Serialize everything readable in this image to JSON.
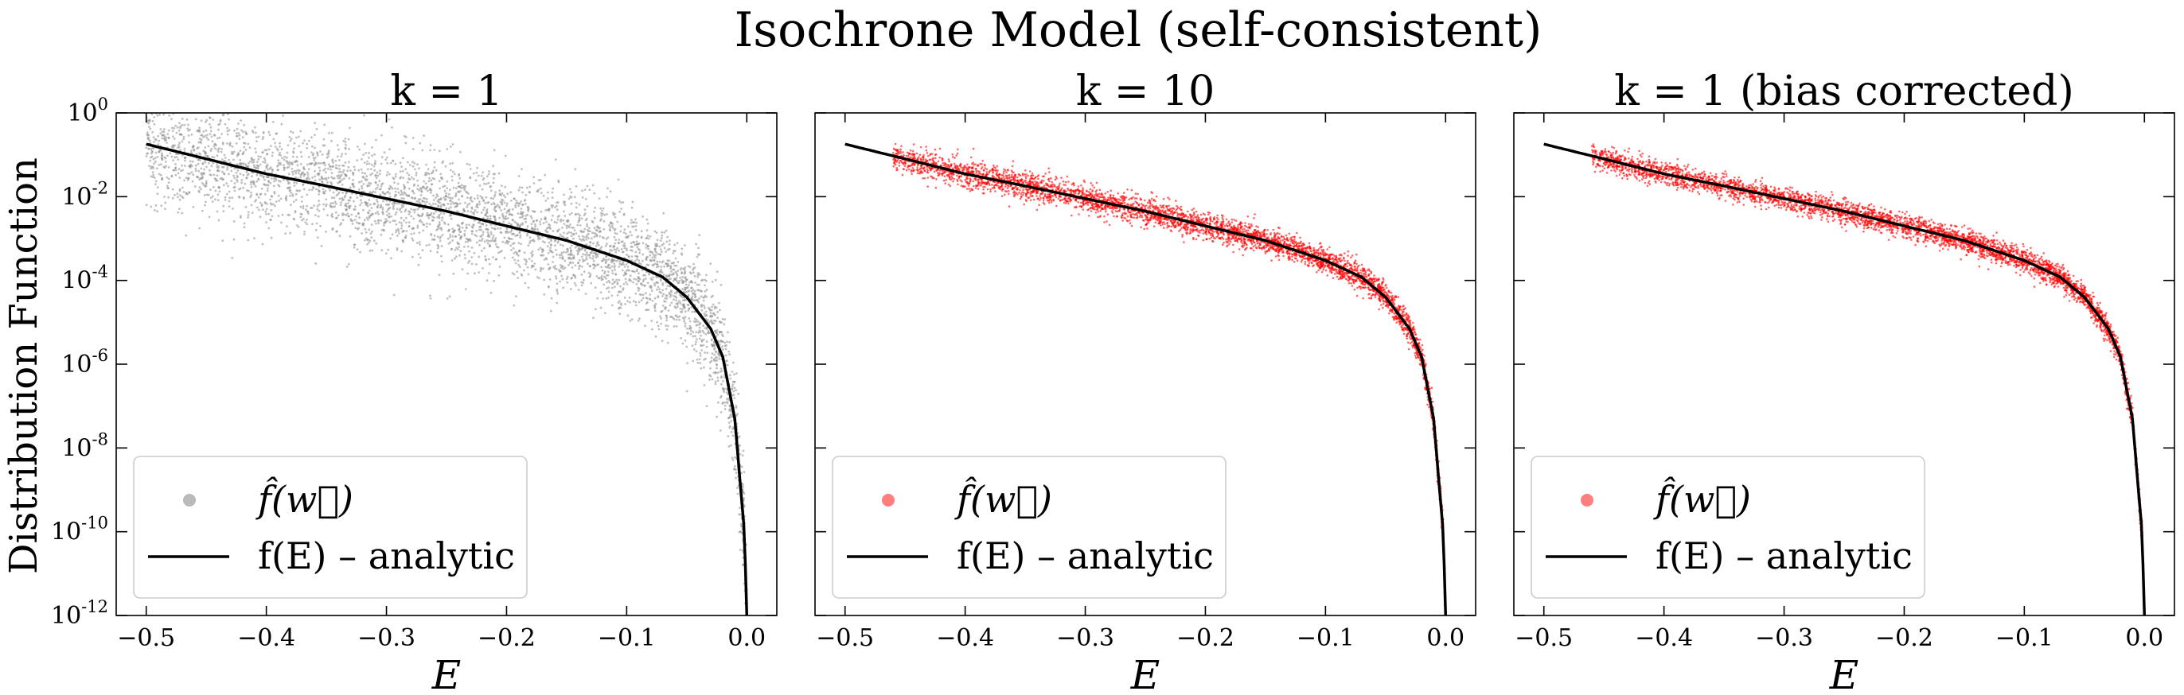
{
  "figure": {
    "title": "Isochrone Model (self-consistent)",
    "ylabel": "Distribution Function"
  },
  "chart_data": [
    {
      "type": "scatter",
      "title": "k = 1",
      "xlabel": "E",
      "ylabel": "Distribution Function",
      "xlim": [
        -0.525,
        0.025
      ],
      "ylim": [
        1e-12,
        1
      ],
      "yscale": "log",
      "xticks": [
        "−0.5",
        "−0.4",
        "−0.3",
        "−0.2",
        "−0.1",
        "0.0"
      ],
      "yticks": [
        "10^0",
        "10^-2",
        "10^-4",
        "10^-6",
        "10^-8",
        "10^-10",
        "10^-12"
      ],
      "legend": {
        "position": "lower-left",
        "entries": [
          "f̂(w⃗)",
          "f(E) – analytic"
        ]
      },
      "series": [
        {
          "name": "f̂(w⃗)",
          "kind": "scatter",
          "color": "#8c8c8c",
          "spread": 0.4,
          "points_described_by": "noisy samples around the analytic curve, E from -0.5 to 0.0"
        },
        {
          "name": "f(E) – analytic",
          "kind": "line",
          "color": "#000000",
          "x": [
            -0.5,
            -0.45,
            -0.4,
            -0.35,
            -0.3,
            -0.25,
            -0.2,
            -0.15,
            -0.1,
            -0.07,
            -0.05,
            -0.03,
            -0.02,
            -0.01,
            -0.005,
            -0.002,
            -0.001,
            0.0
          ],
          "y": [
            0.18,
            0.08,
            0.035,
            0.018,
            0.009,
            0.0045,
            0.002,
            0.0009,
            0.0003,
            0.00012,
            4e-05,
            7e-06,
            1.5e-06,
            5e-08,
            1e-09,
            1e-10,
            1e-11,
            1e-12
          ]
        }
      ]
    },
    {
      "type": "scatter",
      "title": "k = 10",
      "xlabel": "E",
      "ylabel": "",
      "xlim": [
        -0.525,
        0.025
      ],
      "ylim": [
        1e-12,
        1
      ],
      "yscale": "log",
      "xticks": [
        "−0.5",
        "−0.4",
        "−0.3",
        "−0.2",
        "−0.1",
        "0.0"
      ],
      "legend": {
        "position": "lower-left",
        "entries": [
          "f̂(w⃗)",
          "f(E) – analytic"
        ]
      },
      "series": [
        {
          "name": "f̂(w⃗)",
          "kind": "scatter",
          "color": "#ff0000",
          "spread": 0.16,
          "points_described_by": "noisy samples around the analytic curve, E from -0.46 to 0.0"
        },
        {
          "name": "f(E) – analytic",
          "kind": "line",
          "color": "#000000",
          "x": [
            -0.5,
            -0.45,
            -0.4,
            -0.35,
            -0.3,
            -0.25,
            -0.2,
            -0.15,
            -0.1,
            -0.07,
            -0.05,
            -0.03,
            -0.02,
            -0.01,
            -0.005,
            -0.002,
            -0.001,
            0.0
          ],
          "y": [
            0.18,
            0.08,
            0.035,
            0.018,
            0.009,
            0.0045,
            0.002,
            0.0009,
            0.0003,
            0.00012,
            4e-05,
            7e-06,
            1.5e-06,
            5e-08,
            1e-09,
            1e-10,
            1e-11,
            1e-12
          ]
        }
      ]
    },
    {
      "type": "scatter",
      "title": "k = 1 (bias corrected)",
      "xlabel": "E",
      "ylabel": "",
      "xlim": [
        -0.525,
        0.025
      ],
      "ylim": [
        1e-12,
        1
      ],
      "yscale": "log",
      "xticks": [
        "−0.5",
        "−0.4",
        "−0.3",
        "−0.2",
        "−0.1",
        "0.0"
      ],
      "legend": {
        "position": "lower-left",
        "entries": [
          "f̂(w⃗)",
          "f(E) – analytic"
        ]
      },
      "series": [
        {
          "name": "f̂(w⃗)",
          "kind": "scatter",
          "color": "#ff0000",
          "spread": 0.14,
          "points_described_by": "noisy samples around the analytic curve, E from -0.46 to 0.0"
        },
        {
          "name": "f(E) – analytic",
          "kind": "line",
          "color": "#000000",
          "x": [
            -0.5,
            -0.45,
            -0.4,
            -0.35,
            -0.3,
            -0.25,
            -0.2,
            -0.15,
            -0.1,
            -0.07,
            -0.05,
            -0.03,
            -0.02,
            -0.01,
            -0.005,
            -0.002,
            -0.001,
            0.0
          ],
          "y": [
            0.18,
            0.08,
            0.035,
            0.018,
            0.009,
            0.0045,
            0.002,
            0.0009,
            0.0003,
            0.00012,
            4e-05,
            7e-06,
            1.5e-06,
            5e-08,
            1e-09,
            1e-10,
            1e-11,
            1e-12
          ]
        }
      ]
    }
  ]
}
